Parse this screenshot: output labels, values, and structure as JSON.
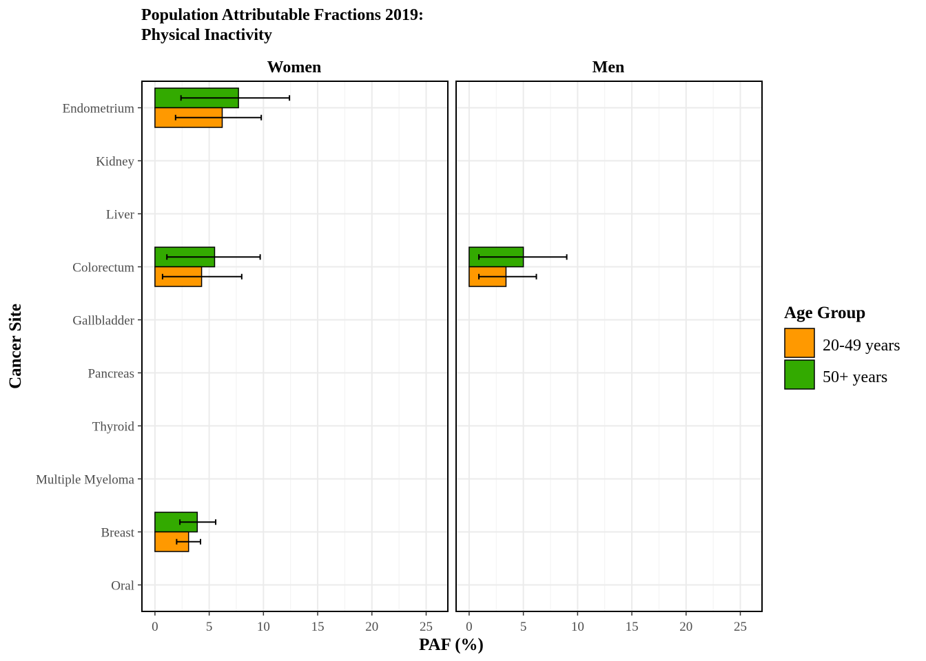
{
  "chart_data": {
    "type": "bar",
    "orientation": "horizontal",
    "title_lines": [
      "Population Attributable Fractions 2019:",
      "Physical Inactivity"
    ],
    "xlabel": "PAF (%)",
    "ylabel": "Cancer Site",
    "xlim": [
      -1.2,
      27
    ],
    "x_ticks": [
      0,
      5,
      10,
      15,
      20,
      25
    ],
    "grid": true,
    "categories": [
      "Endometrium",
      "Kidney",
      "Liver",
      "Colorectum",
      "Gallbladder",
      "Pancreas",
      "Thyroid",
      "Multiple Myeloma",
      "Breast",
      "Oral"
    ],
    "legend": {
      "title": "Age Group",
      "placement": "right",
      "entries": [
        {
          "label": "20-49 years",
          "color": "#ff9900"
        },
        {
          "label": "50+ years",
          "color": "#33aa00"
        }
      ]
    },
    "panels": [
      {
        "name": "Women",
        "series": [
          {
            "name": "20-49 years",
            "values": [
              6.2,
              0,
              0,
              4.3,
              0,
              0,
              0,
              0,
              3.1,
              0
            ],
            "lower": [
              1.9,
              0,
              0,
              0.7,
              0,
              0,
              0,
              0,
              2.0,
              0
            ],
            "upper": [
              9.8,
              0,
              0,
              8.0,
              0,
              0,
              0,
              0,
              4.2,
              0
            ]
          },
          {
            "name": "50+ years",
            "values": [
              7.7,
              0,
              0,
              5.5,
              0,
              0,
              0,
              0,
              3.9,
              0
            ],
            "lower": [
              2.4,
              0,
              0,
              1.1,
              0,
              0,
              0,
              0,
              2.3,
              0
            ],
            "upper": [
              12.4,
              0,
              0,
              9.7,
              0,
              0,
              0,
              0,
              5.6,
              0
            ]
          }
        ]
      },
      {
        "name": "Men",
        "series": [
          {
            "name": "20-49 years",
            "values": [
              0,
              0,
              0,
              3.4,
              0,
              0,
              0,
              0,
              0,
              0
            ],
            "lower": [
              0,
              0,
              0,
              0.9,
              0,
              0,
              0,
              0,
              0,
              0
            ],
            "upper": [
              0,
              0,
              0,
              6.2,
              0,
              0,
              0,
              0,
              0,
              0
            ]
          },
          {
            "name": "50+ years",
            "values": [
              0,
              0,
              0,
              5.0,
              0,
              0,
              0,
              0,
              0,
              0
            ],
            "lower": [
              0,
              0,
              0,
              0.9,
              0,
              0,
              0,
              0,
              0,
              0
            ],
            "upper": [
              0,
              0,
              0,
              9.0,
              0,
              0,
              0,
              0,
              0,
              0
            ]
          }
        ]
      }
    ]
  }
}
